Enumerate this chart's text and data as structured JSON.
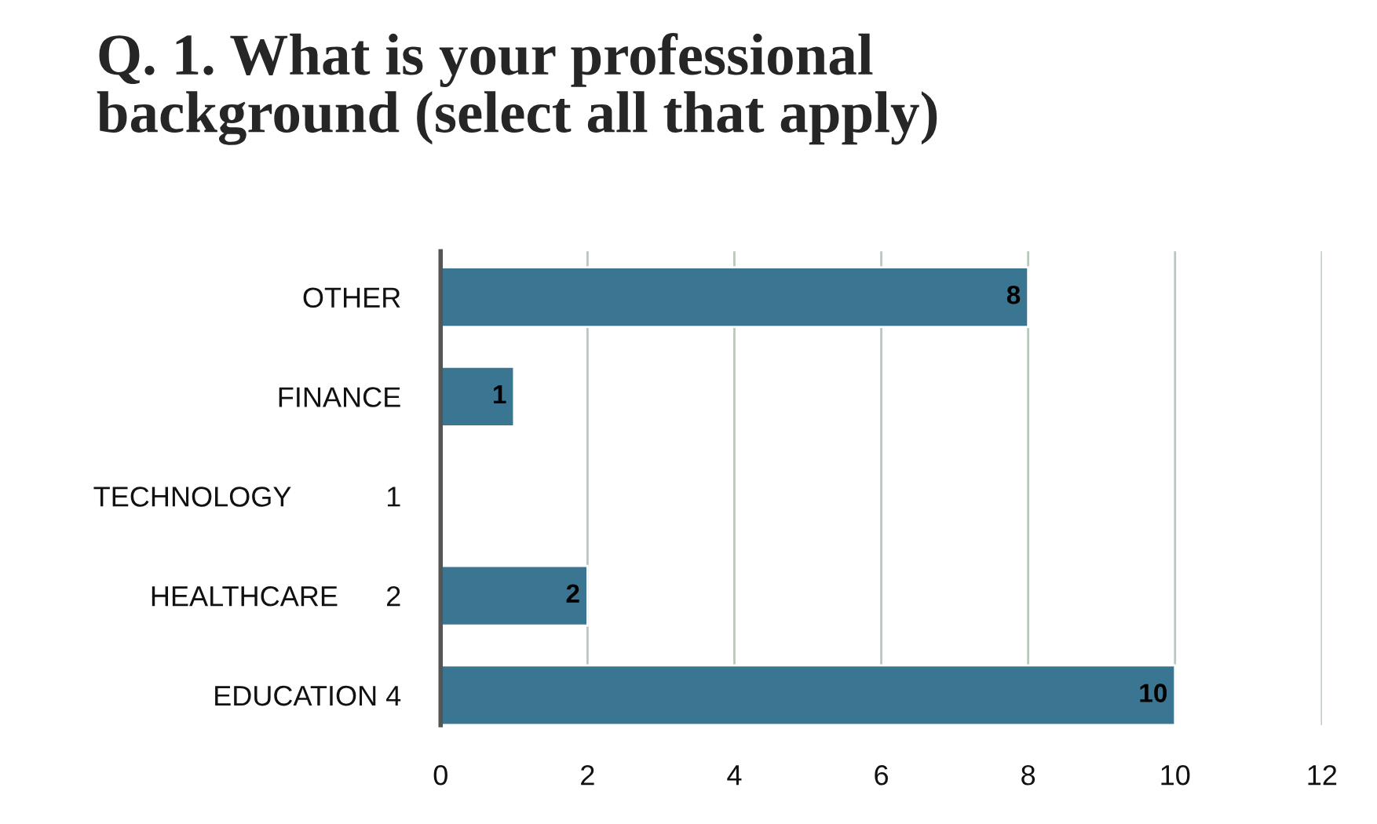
{
  "chart_data": {
    "type": "bar",
    "orientation": "horizontal",
    "title": "Q. 1. What is your professional\nbackground (select all that apply)",
    "categories": [
      "OTHER",
      "FINANCE",
      "TECHNOLOGY            1",
      "HEALTHCARE      2",
      "EDUCATION 4"
    ],
    "values": [
      8,
      1,
      null,
      2,
      10
    ],
    "value_labels": [
      "8",
      "1",
      null,
      "2",
      "10"
    ],
    "color": "#3a7691",
    "xlim": [
      0,
      12
    ],
    "xticks": [
      0,
      2,
      4,
      6,
      8,
      10,
      12
    ],
    "grid": "x"
  }
}
